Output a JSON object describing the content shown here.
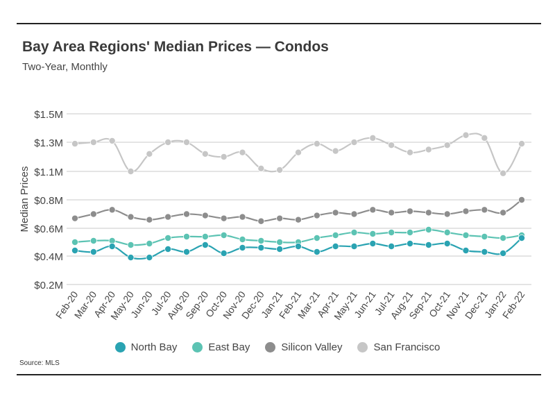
{
  "title": "Bay Area Regions' Median Prices — Condos",
  "subtitle": "Two-Year, Monthly",
  "source": "Source: MLS",
  "chart_data": {
    "type": "line",
    "ylabel": "Median Prices",
    "ylim": [
      0.2,
      1.5
    ],
    "yticks": [
      {
        "value": 0.2,
        "label": "$0.2M"
      },
      {
        "value": 0.4,
        "label": "$0.4M"
      },
      {
        "value": 0.6,
        "label": "$0.6M"
      },
      {
        "value": 0.8,
        "label": "$0.8M"
      },
      {
        "value": 1.1,
        "label": "$1.1M"
      },
      {
        "value": 1.3,
        "label": "$1.3M"
      },
      {
        "value": 1.5,
        "label": "$1.5M"
      }
    ],
    "grid": true,
    "legend_position": "bottom",
    "categories": [
      "Feb-20",
      "Mar-20",
      "Apr-20",
      "May-20",
      "Jun-20",
      "Jul-20",
      "Aug-20",
      "Sep-20",
      "Oct-20",
      "Nov-20",
      "Dec-20",
      "Jan-21",
      "Feb-21",
      "Mar-21",
      "Apr-21",
      "May-21",
      "Jun-21",
      "Jul-21",
      "Aug-21",
      "Sep-21",
      "Oct-21",
      "Nov-21",
      "Dec-21",
      "Jan-22",
      "Feb-22"
    ],
    "series": [
      {
        "name": "San Francisco",
        "color": "#c6c6c6",
        "values": [
          1.29,
          1.3,
          1.31,
          1.1,
          1.22,
          1.3,
          1.3,
          1.22,
          1.2,
          1.23,
          1.12,
          1.11,
          1.23,
          1.29,
          1.24,
          1.3,
          1.33,
          1.28,
          1.23,
          1.25,
          1.28,
          1.35,
          1.33,
          1.08,
          1.29
        ]
      },
      {
        "name": "Silicon Valley",
        "color": "#8d8d8d",
        "values": [
          0.67,
          0.7,
          0.73,
          0.68,
          0.66,
          0.68,
          0.7,
          0.69,
          0.67,
          0.68,
          0.65,
          0.67,
          0.66,
          0.69,
          0.71,
          0.7,
          0.73,
          0.71,
          0.72,
          0.71,
          0.7,
          0.72,
          0.73,
          0.71,
          0.8
        ]
      },
      {
        "name": "East Bay",
        "color": "#5cc3b3",
        "values": [
          0.5,
          0.51,
          0.51,
          0.48,
          0.49,
          0.53,
          0.54,
          0.54,
          0.55,
          0.52,
          0.51,
          0.5,
          0.5,
          0.53,
          0.55,
          0.57,
          0.56,
          0.57,
          0.57,
          0.59,
          0.57,
          0.55,
          0.54,
          0.53,
          0.55
        ]
      },
      {
        "name": "North Bay",
        "color": "#2aa3b2",
        "values": [
          0.44,
          0.43,
          0.47,
          0.39,
          0.39,
          0.45,
          0.43,
          0.48,
          0.42,
          0.46,
          0.46,
          0.45,
          0.47,
          0.43,
          0.47,
          0.47,
          0.49,
          0.47,
          0.49,
          0.48,
          0.49,
          0.44,
          0.43,
          0.42,
          0.53
        ]
      }
    ],
    "legend_order": [
      "North Bay",
      "East Bay",
      "Silicon Valley",
      "San Francisco"
    ]
  }
}
